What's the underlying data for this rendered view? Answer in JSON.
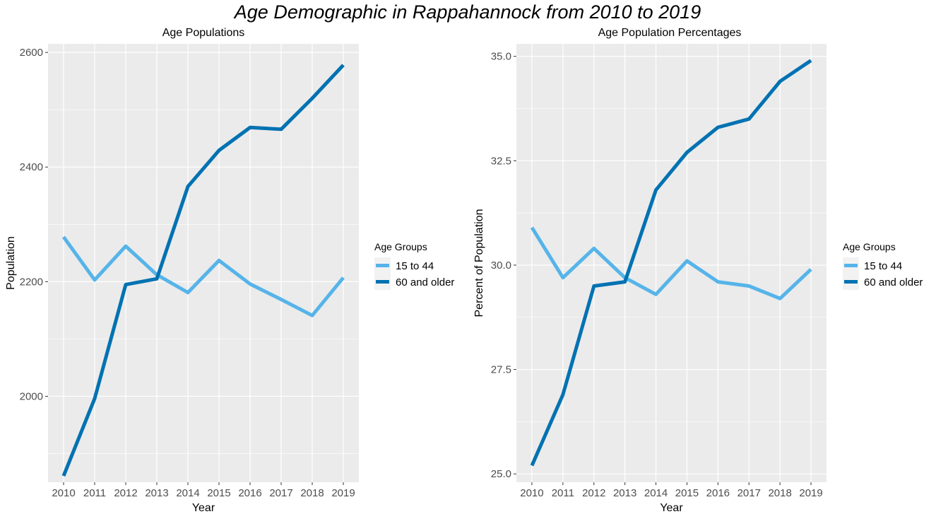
{
  "figure_title": "Age Demographic in Rappahannock from 2010 to 2019",
  "legend_title": "Age Groups",
  "chart_data": [
    {
      "type": "line",
      "title": "Age Populations",
      "xlabel": "Year",
      "ylabel": "Population",
      "x": [
        "2010",
        "2011",
        "2012",
        "2013",
        "2014",
        "2015",
        "2016",
        "2017",
        "2018",
        "2019"
      ],
      "ylim": [
        1850,
        2615
      ],
      "yticks": [
        {
          "value": 2000,
          "label": "2000"
        },
        {
          "value": 2200,
          "label": "2200"
        },
        {
          "value": 2400,
          "label": "2400"
        },
        {
          "value": 2600,
          "label": "2600"
        }
      ],
      "grid": true,
      "legend_position": "right",
      "series": [
        {
          "name": "15 to 44",
          "color": "#56b4e9",
          "values": [
            2278,
            2203,
            2262,
            2212,
            2181,
            2237,
            2196,
            2169,
            2141,
            2207
          ]
        },
        {
          "name": "60 and older",
          "color": "#0072b2",
          "values": [
            1861,
            1996,
            2195,
            2205,
            2366,
            2429,
            2469,
            2466,
            2520,
            2578
          ]
        }
      ]
    },
    {
      "type": "line",
      "title": "Age Population Percentages",
      "xlabel": "Year",
      "ylabel": "Percent of Population",
      "x": [
        "2010",
        "2011",
        "2012",
        "2013",
        "2014",
        "2015",
        "2016",
        "2017",
        "2018",
        "2019"
      ],
      "ylim": [
        24.8,
        35.3
      ],
      "yticks": [
        {
          "value": 25.0,
          "label": "25.0"
        },
        {
          "value": 27.5,
          "label": "27.5"
        },
        {
          "value": 30.0,
          "label": "30.0"
        },
        {
          "value": 32.5,
          "label": "32.5"
        },
        {
          "value": 35.0,
          "label": "35.0"
        }
      ],
      "grid": true,
      "legend_position": "right",
      "series": [
        {
          "name": "15 to 44",
          "color": "#56b4e9",
          "values": [
            30.9,
            29.7,
            30.4,
            29.7,
            29.3,
            30.1,
            29.6,
            29.5,
            29.2,
            29.9
          ]
        },
        {
          "name": "60 and older",
          "color": "#0072b2",
          "values": [
            25.2,
            26.9,
            29.5,
            29.6,
            31.8,
            32.7,
            33.3,
            33.5,
            34.4,
            34.9
          ]
        }
      ]
    }
  ]
}
